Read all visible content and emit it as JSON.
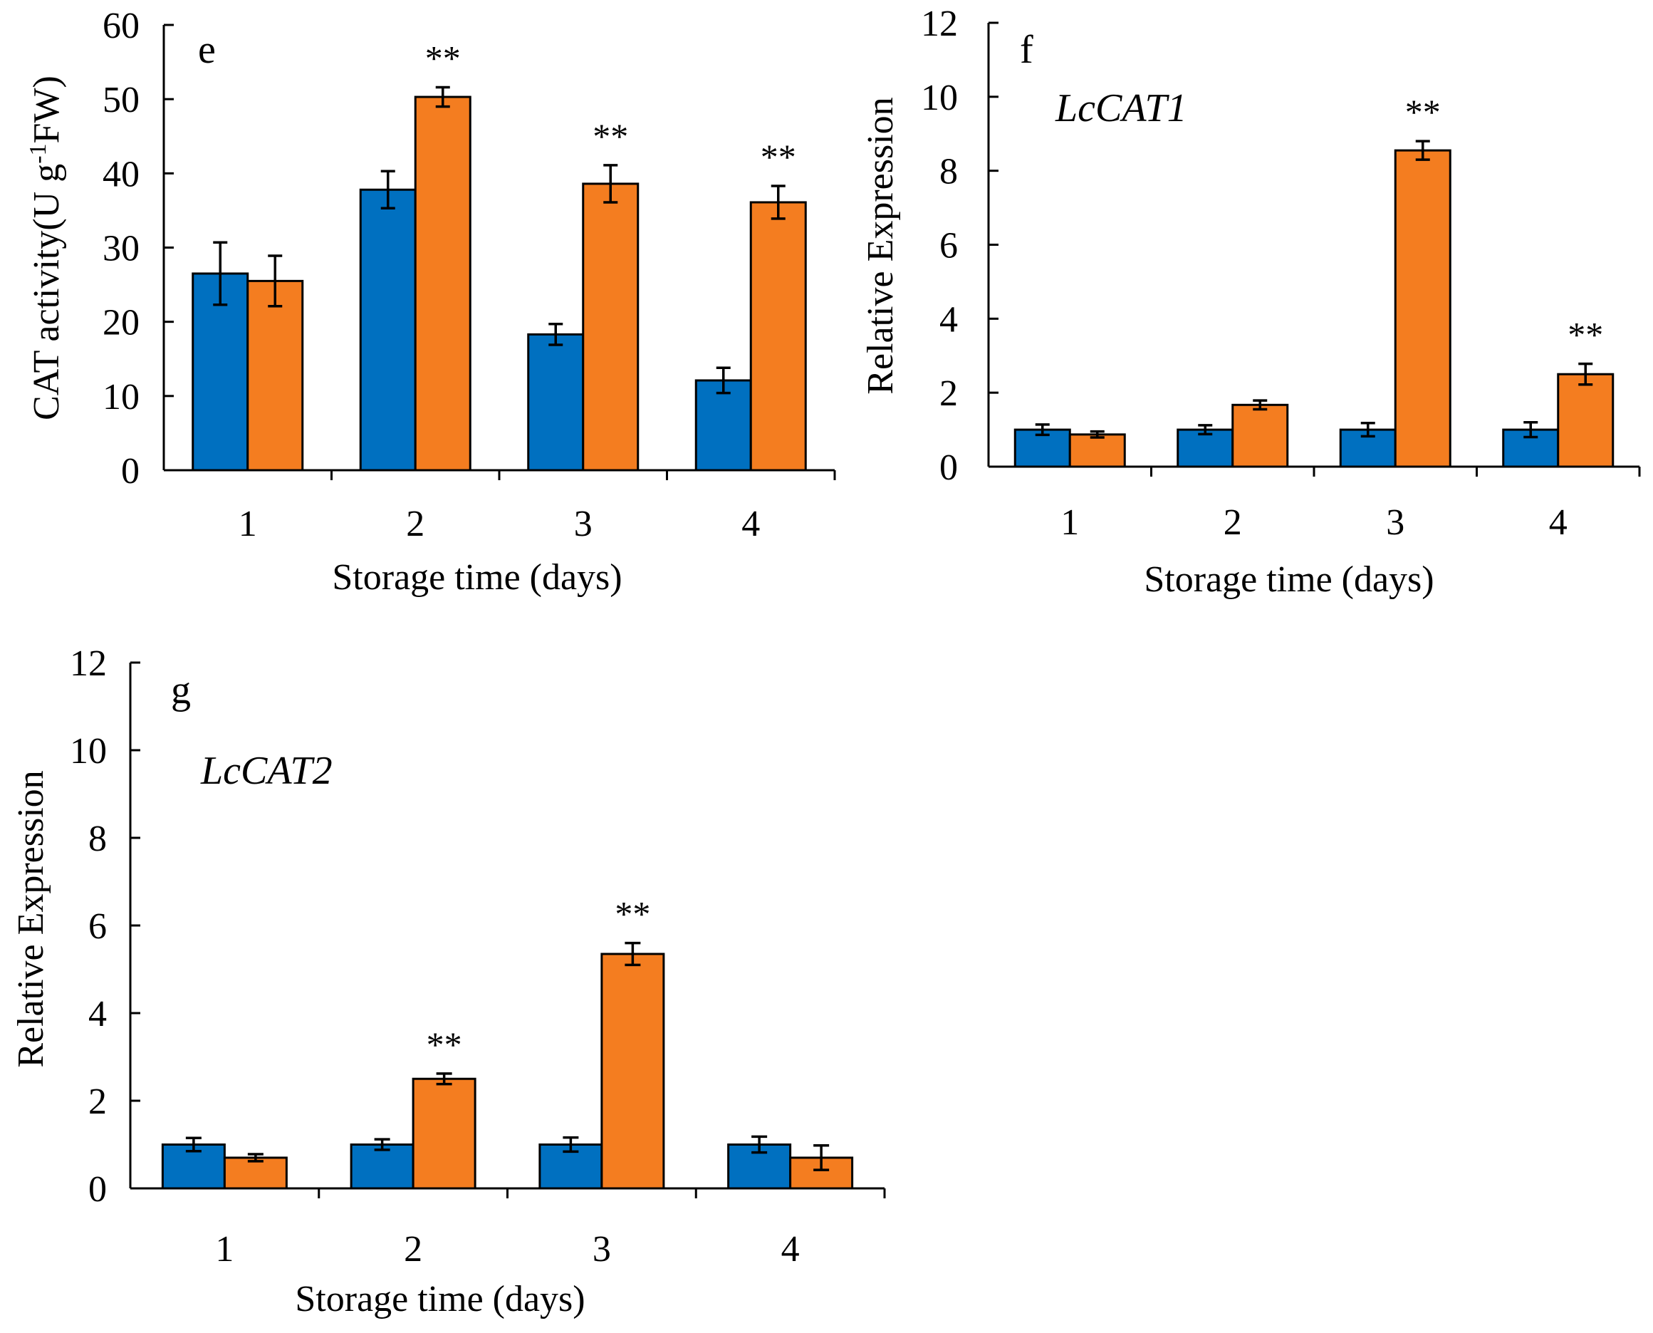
{
  "chart_data": [
    {
      "id": "e",
      "type": "bar",
      "panel_label": "e",
      "title": "",
      "xlabel": "Storage time (days)",
      "ylabel": "CAT activity(U g",
      "ylabel_sup": "-1",
      "ylabel_end": "FW)",
      "categories": [
        "1",
        "2",
        "3",
        "4"
      ],
      "ylim": [
        0,
        60
      ],
      "yticks": [
        0,
        10,
        20,
        30,
        40,
        50,
        60
      ],
      "series": [
        {
          "name": "series-blue",
          "color": "#0070C0",
          "values": [
            26.5,
            37.8,
            18.3,
            12.1
          ],
          "errors": [
            4.2,
            2.5,
            1.4,
            1.7
          ]
        },
        {
          "name": "series-orange",
          "color": "#F47D20",
          "values": [
            25.5,
            50.3,
            38.6,
            36.1
          ],
          "errors": [
            3.4,
            1.3,
            2.5,
            2.2
          ]
        }
      ],
      "annotations": [
        {
          "category": "2",
          "series": 1,
          "text": "**"
        },
        {
          "category": "3",
          "series": 1,
          "text": "**"
        },
        {
          "category": "4",
          "series": 1,
          "text": "**"
        }
      ]
    },
    {
      "id": "f",
      "type": "bar",
      "panel_label": "f",
      "gene_label": "LcCAT1",
      "title": "",
      "xlabel": "Storage time (days)",
      "ylabel": "Relative Expression",
      "categories": [
        "1",
        "2",
        "3",
        "4"
      ],
      "ylim": [
        0,
        12
      ],
      "yticks": [
        0,
        2,
        4,
        6,
        8,
        10,
        12
      ],
      "series": [
        {
          "name": "series-blue",
          "color": "#0070C0",
          "values": [
            1.0,
            1.0,
            1.0,
            1.0
          ],
          "errors": [
            0.14,
            0.12,
            0.18,
            0.2
          ]
        },
        {
          "name": "series-orange",
          "color": "#F47D20",
          "values": [
            0.87,
            1.67,
            8.55,
            2.5
          ],
          "errors": [
            0.08,
            0.12,
            0.25,
            0.28
          ]
        }
      ],
      "annotations": [
        {
          "category": "3",
          "series": 1,
          "text": "**"
        },
        {
          "category": "4",
          "series": 1,
          "text": "**"
        }
      ]
    },
    {
      "id": "g",
      "type": "bar",
      "panel_label": "g",
      "gene_label": "LcCAT2",
      "title": "",
      "xlabel": "Storage time (days)",
      "ylabel": "Relative Expression",
      "categories": [
        "1",
        "2",
        "3",
        "4"
      ],
      "ylim": [
        0,
        12
      ],
      "yticks": [
        0,
        2,
        4,
        6,
        8,
        10,
        12
      ],
      "series": [
        {
          "name": "series-blue",
          "color": "#0070C0",
          "values": [
            1.0,
            1.0,
            1.0,
            1.0
          ],
          "errors": [
            0.15,
            0.12,
            0.16,
            0.18
          ]
        },
        {
          "name": "series-orange",
          "color": "#F47D20",
          "values": [
            0.7,
            2.5,
            5.35,
            0.7
          ],
          "errors": [
            0.08,
            0.12,
            0.25,
            0.28
          ]
        }
      ],
      "annotations": [
        {
          "category": "2",
          "series": 1,
          "text": "**"
        },
        {
          "category": "3",
          "series": 1,
          "text": "**"
        }
      ]
    }
  ]
}
